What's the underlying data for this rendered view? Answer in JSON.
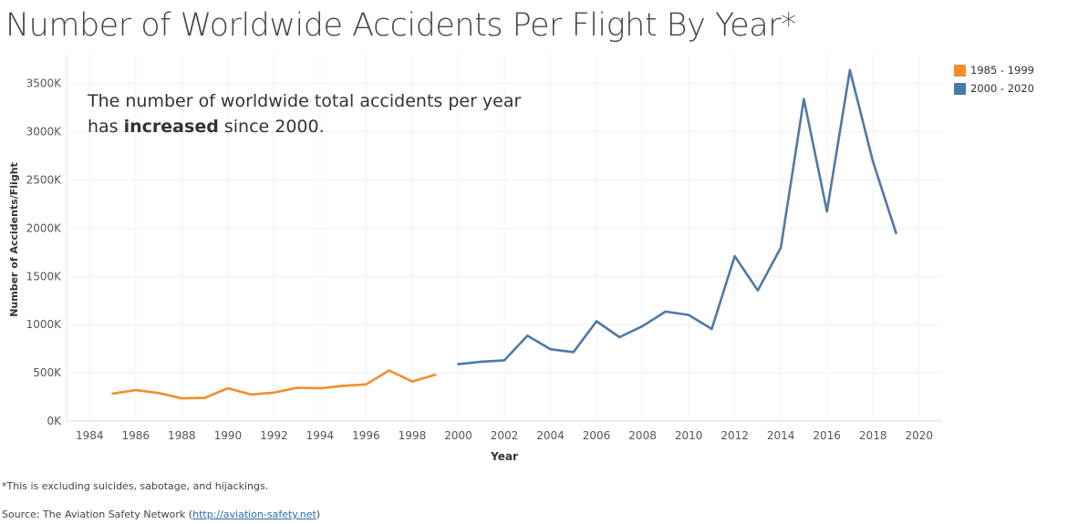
{
  "chart_data": {
    "type": "line",
    "title": "Number of Worldwide Accidents Per Flight By Year*",
    "xlabel": "Year",
    "ylabel": "Number of Accidents/Flight",
    "xlim": [
      1983,
      2021
    ],
    "ylim": [
      0,
      3800000
    ],
    "x_ticks": [
      1984,
      1986,
      1988,
      1990,
      1992,
      1994,
      1996,
      1998,
      2000,
      2002,
      2004,
      2006,
      2008,
      2010,
      2012,
      2014,
      2016,
      2018,
      2020
    ],
    "y_ticks": [
      0,
      500000,
      1000000,
      1500000,
      2000000,
      2500000,
      3000000,
      3500000
    ],
    "y_tick_labels": [
      "0K",
      "500K",
      "1000K",
      "1500K",
      "2000K",
      "2500K",
      "3000K",
      "3500K"
    ],
    "grid": true,
    "legend_position": "top-right",
    "series": [
      {
        "name": "1985 - 1999",
        "color": "#f28e2b",
        "x": [
          1985,
          1986,
          1987,
          1988,
          1989,
          1990,
          1991,
          1992,
          1993,
          1994,
          1995,
          1996,
          1997,
          1998,
          1999
        ],
        "values": [
          285000,
          320000,
          290000,
          235000,
          240000,
          340000,
          275000,
          295000,
          345000,
          340000,
          365000,
          380000,
          525000,
          410000,
          480000
        ]
      },
      {
        "name": "2000 - 2020",
        "color": "#4e79a7",
        "x": [
          2000,
          2001,
          2002,
          2003,
          2004,
          2005,
          2006,
          2007,
          2008,
          2009,
          2010,
          2011,
          2012,
          2013,
          2014,
          2015,
          2016,
          2017,
          2018,
          2019
        ],
        "values": [
          590000,
          615000,
          630000,
          885000,
          745000,
          715000,
          1035000,
          870000,
          985000,
          1135000,
          1100000,
          955000,
          1710000,
          1355000,
          1800000,
          3340000,
          2175000,
          3640000,
          2690000,
          1950000
        ]
      }
    ],
    "annotation": {
      "line1": "The number of worldwide total accidents per year",
      "line2_prefix": "has ",
      "line2_bold": "increased",
      "line2_suffix": " since 2000."
    }
  },
  "footnote": "*This is excluding suicides, sabotage, and hijackings.",
  "source": {
    "prefix": "Source: The Aviation Safety Network (",
    "link": "http://aviation-safety.net",
    "suffix": ")"
  }
}
